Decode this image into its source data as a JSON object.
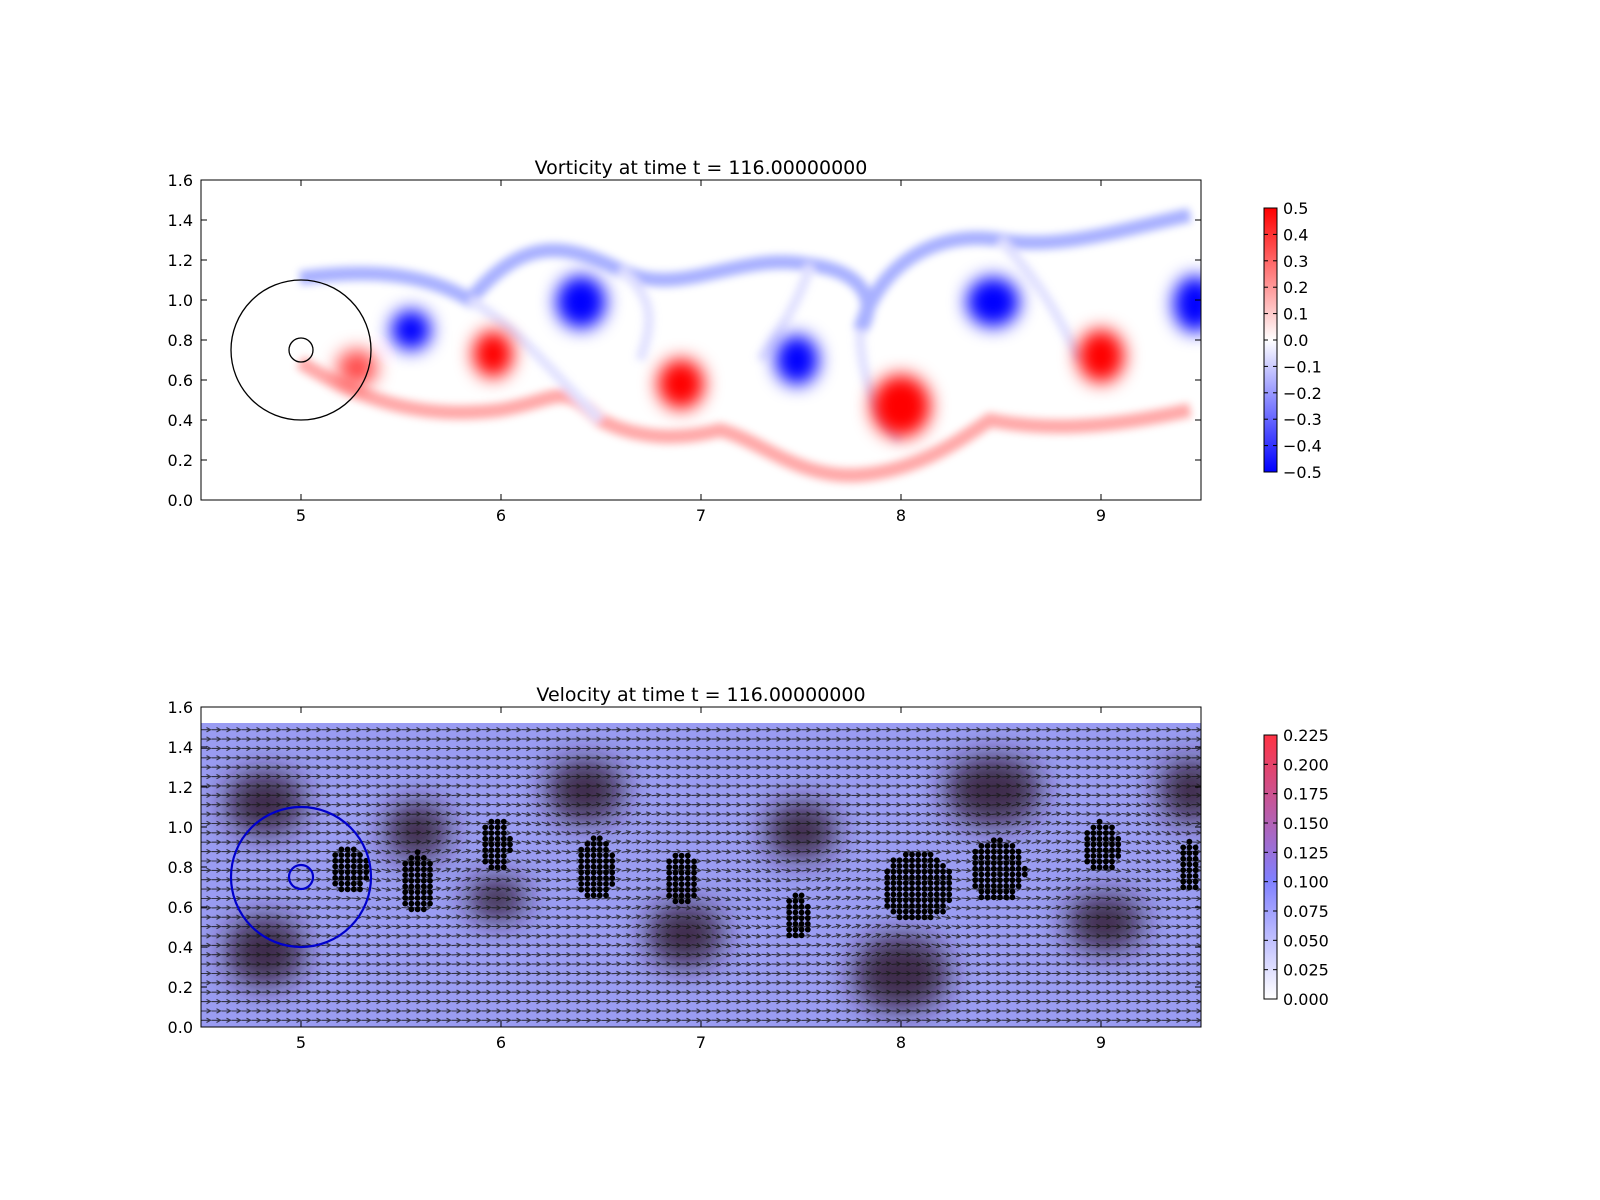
{
  "chart_data": [
    {
      "type": "heatmap",
      "title": "Vorticity at time t =   116.00000000",
      "xlabel": "",
      "ylabel": "",
      "xlim": [
        4.5,
        9.5
      ],
      "ylim": [
        0.0,
        1.6
      ],
      "xticks": [
        "5",
        "6",
        "7",
        "8",
        "9"
      ],
      "yticks": [
        "0.0",
        "0.2",
        "0.4",
        "0.6",
        "0.8",
        "1.0",
        "1.2",
        "1.4",
        "1.6"
      ],
      "colorbar": {
        "range": [
          -0.5,
          0.5
        ],
        "ticks": [
          "0.5",
          "0.4",
          "0.3",
          "0.2",
          "0.1",
          "0.0",
          "−0.1",
          "−0.2",
          "−0.3",
          "−0.4",
          "−0.5"
        ],
        "colors": [
          "#0000ff",
          "#ffffff",
          "#ff0000"
        ]
      },
      "colors": {
        "positive": "#ff0000",
        "negative": "#0000ff",
        "zero": "#ffffff",
        "outline": "#000000"
      },
      "vortices": [
        {
          "x": 5.55,
          "y": 0.85,
          "strength": -0.5,
          "rx": 0.13,
          "ry": 0.13
        },
        {
          "x": 5.28,
          "y": 0.66,
          "strength": 0.35,
          "rx": 0.13,
          "ry": 0.12
        },
        {
          "x": 5.96,
          "y": 0.73,
          "strength": 0.5,
          "rx": 0.13,
          "ry": 0.15
        },
        {
          "x": 6.4,
          "y": 0.99,
          "strength": -0.5,
          "rx": 0.16,
          "ry": 0.17
        },
        {
          "x": 6.9,
          "y": 0.58,
          "strength": 0.5,
          "rx": 0.15,
          "ry": 0.16
        },
        {
          "x": 7.48,
          "y": 0.7,
          "strength": -0.5,
          "rx": 0.14,
          "ry": 0.16
        },
        {
          "x": 8.0,
          "y": 0.47,
          "strength": 0.5,
          "rx": 0.19,
          "ry": 0.2
        },
        {
          "x": 8.46,
          "y": 0.99,
          "strength": -0.5,
          "rx": 0.17,
          "ry": 0.16
        },
        {
          "x": 9.0,
          "y": 0.72,
          "strength": 0.5,
          "rx": 0.15,
          "ry": 0.17
        },
        {
          "x": 9.47,
          "y": 0.98,
          "strength": -0.5,
          "rx": 0.14,
          "ry": 0.18
        }
      ],
      "bodies": [
        {
          "x": 5.0,
          "y": 0.75,
          "r": 0.35
        },
        {
          "x": 5.0,
          "y": 0.75,
          "r": 0.06
        }
      ]
    },
    {
      "type": "heatmap",
      "title": "Velocity at time t =   116.00000000",
      "xlabel": "",
      "ylabel": "",
      "xlim": [
        4.5,
        9.5
      ],
      "ylim": [
        0.0,
        1.6
      ],
      "xticks": [
        "5",
        "6",
        "7",
        "8",
        "9"
      ],
      "yticks": [
        "0.0",
        "0.2",
        "0.4",
        "0.6",
        "0.8",
        "1.0",
        "1.2",
        "1.4",
        "1.6"
      ],
      "colorbar": {
        "range": [
          0.0,
          0.225
        ],
        "ticks": [
          "0.225",
          "0.200",
          "0.175",
          "0.150",
          "0.125",
          "0.100",
          "0.075",
          "0.050",
          "0.025",
          "0.000"
        ],
        "colors": [
          "#ffffff",
          "#8080ff",
          "#ff3344"
        ]
      },
      "field_ylim": [
        0.0,
        1.52
      ],
      "colors": {
        "background": "#9a9cf2",
        "arrows": "#1a1a1a",
        "markers": "#000000",
        "bodies": "#0000cc",
        "dark_regions": "#301830"
      },
      "dark_regions": [
        {
          "x": 4.82,
          "y": 0.38,
          "rx": 0.25,
          "ry": 0.22
        },
        {
          "x": 4.82,
          "y": 1.12,
          "rx": 0.25,
          "ry": 0.2
        },
        {
          "x": 5.58,
          "y": 0.98,
          "rx": 0.2,
          "ry": 0.18
        },
        {
          "x": 5.98,
          "y": 0.64,
          "rx": 0.18,
          "ry": 0.14
        },
        {
          "x": 6.42,
          "y": 1.18,
          "rx": 0.24,
          "ry": 0.2
        },
        {
          "x": 6.92,
          "y": 0.46,
          "rx": 0.24,
          "ry": 0.2
        },
        {
          "x": 7.5,
          "y": 0.98,
          "rx": 0.22,
          "ry": 0.18
        },
        {
          "x": 8.0,
          "y": 0.27,
          "rx": 0.3,
          "ry": 0.24
        },
        {
          "x": 8.46,
          "y": 1.18,
          "rx": 0.3,
          "ry": 0.22
        },
        {
          "x": 9.02,
          "y": 0.52,
          "rx": 0.24,
          "ry": 0.18
        },
        {
          "x": 9.45,
          "y": 1.18,
          "rx": 0.2,
          "ry": 0.2
        }
      ],
      "marker_clusters": [
        {
          "x": 5.24,
          "y": 0.78,
          "rx": 0.1,
          "ry": 0.12
        },
        {
          "x": 5.58,
          "y": 0.72,
          "rx": 0.09,
          "ry": 0.16
        },
        {
          "x": 5.97,
          "y": 0.91,
          "rx": 0.08,
          "ry": 0.14
        },
        {
          "x": 6.47,
          "y": 0.79,
          "rx": 0.1,
          "ry": 0.16
        },
        {
          "x": 6.9,
          "y": 0.74,
          "rx": 0.09,
          "ry": 0.14
        },
        {
          "x": 7.48,
          "y": 0.55,
          "rx": 0.07,
          "ry": 0.12
        },
        {
          "x": 8.08,
          "y": 0.7,
          "rx": 0.18,
          "ry": 0.18
        },
        {
          "x": 8.48,
          "y": 0.78,
          "rx": 0.14,
          "ry": 0.16
        },
        {
          "x": 9.0,
          "y": 0.9,
          "rx": 0.1,
          "ry": 0.13
        },
        {
          "x": 9.44,
          "y": 0.8,
          "rx": 0.06,
          "ry": 0.13
        }
      ],
      "bodies": [
        {
          "x": 5.0,
          "y": 0.75,
          "r": 0.35
        },
        {
          "x": 5.0,
          "y": 0.75,
          "r": 0.06
        }
      ]
    }
  ]
}
